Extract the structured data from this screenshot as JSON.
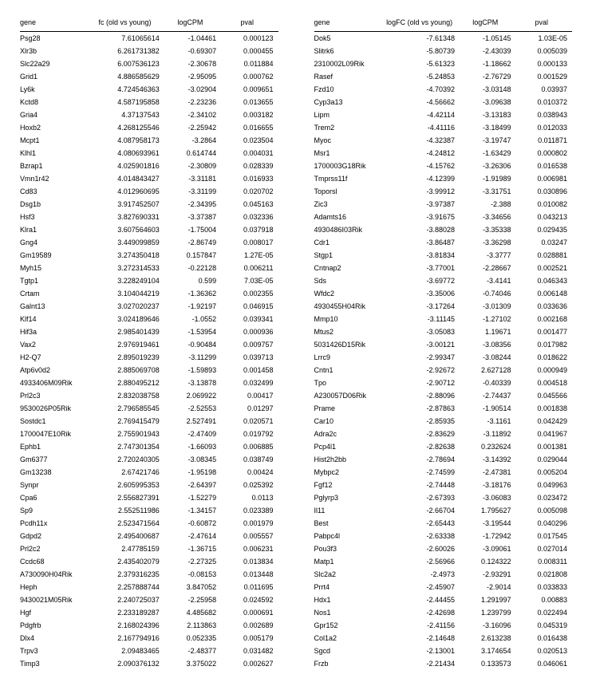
{
  "left_table": {
    "columns": [
      "gene",
      "fc (old vs young)",
      "logCPM",
      "pval"
    ],
    "rows": [
      [
        "Psg28",
        "7.61065614",
        "-1.04461",
        "0.000123"
      ],
      [
        "Xlr3b",
        "6.261731382",
        "-0.69307",
        "0.000455"
      ],
      [
        "Slc22a29",
        "6.007536123",
        "-2.30678",
        "0.011884"
      ],
      [
        "Grid1",
        "4.886585629",
        "-2.95095",
        "0.000762"
      ],
      [
        "Ly6k",
        "4.724546363",
        "-3.02904",
        "0.009651"
      ],
      [
        "Kctd8",
        "4.587195858",
        "-2.23236",
        "0.013655"
      ],
      [
        "Gria4",
        "4.37137543",
        "-2.34102",
        "0.003182"
      ],
      [
        "Hoxb2",
        "4.268125546",
        "-2.25942",
        "0.016655"
      ],
      [
        "Mcpt1",
        "4.087958173",
        "-3.2864",
        "0.023504"
      ],
      [
        "Klhl1",
        "4.080693961",
        "0.614744",
        "0.004031"
      ],
      [
        "Bzrap1",
        "4.025901816",
        "-2.30809",
        "0.028339"
      ],
      [
        "Vmn1r42",
        "4.014843427",
        "-3.31181",
        "0.016933"
      ],
      [
        "Cd83",
        "4.012960695",
        "-3.31199",
        "0.020702"
      ],
      [
        "Dsg1b",
        "3.917452507",
        "-2.34395",
        "0.045163"
      ],
      [
        "Hsf3",
        "3.827690331",
        "-3.37387",
        "0.032336"
      ],
      [
        "Klra1",
        "3.607564603",
        "-1.75004",
        "0.037918"
      ],
      [
        "Gng4",
        "3.449099859",
        "-2.86749",
        "0.008017"
      ],
      [
        "Gm19589",
        "3.274350418",
        "0.157847",
        "1.27E-05"
      ],
      [
        "Myh15",
        "3.272314533",
        "-0.22128",
        "0.006211"
      ],
      [
        "Tgtp1",
        "3.228249104",
        "0.599",
        "7.03E-05"
      ],
      [
        "Crtam",
        "3.104044219",
        "-1.36362",
        "0.002355"
      ],
      [
        "Galnt13",
        "3.027020237",
        "-1.92197",
        "0.046915"
      ],
      [
        "Klf14",
        "3.024189646",
        "-1.0552",
        "0.039341"
      ],
      [
        "Hif3a",
        "2.985401439",
        "-1.53954",
        "0.000936"
      ],
      [
        "Vax2",
        "2.976919461",
        "-0.90484",
        "0.009757"
      ],
      [
        "H2-Q7",
        "2.895019239",
        "-3.11299",
        "0.039713"
      ],
      [
        "Atp6v0d2",
        "2.885069708",
        "-1.59893",
        "0.001458"
      ],
      [
        "4933406M09Rik",
        "2.880495212",
        "-3.13878",
        "0.032499"
      ],
      [
        "Prl2c3",
        "2.832038758",
        "2.069922",
        "0.00417"
      ],
      [
        "9530026P05Rik",
        "2.796585545",
        "-2.52553",
        "0.01297"
      ],
      [
        "Sostdc1",
        "2.769415479",
        "2.527491",
        "0.020571"
      ],
      [
        "1700047E10Rik",
        "2.755901943",
        "-2.47409",
        "0.019792"
      ],
      [
        "Ephb1",
        "2.747301354",
        "-1.66093",
        "0.006885"
      ],
      [
        "Gm6377",
        "2.720240305",
        "-3.08345",
        "0.038749"
      ],
      [
        "Gm13238",
        "2.67421746",
        "-1.95198",
        "0.00424"
      ],
      [
        "Synpr",
        "2.605995353",
        "-2.64397",
        "0.025392"
      ],
      [
        "Cpa6",
        "2.556827391",
        "-1.52279",
        "0.0113"
      ],
      [
        "Sp9",
        "2.552511986",
        "-1.34157",
        "0.023389"
      ],
      [
        "Pcdh11x",
        "2.523471564",
        "-0.60872",
        "0.001979"
      ],
      [
        "Gdpd2",
        "2.495400687",
        "-2.47614",
        "0.005557"
      ],
      [
        "Prl2c2",
        "2.47785159",
        "-1.36715",
        "0.006231"
      ],
      [
        "Ccdc68",
        "2.435402079",
        "-2.27325",
        "0.013834"
      ],
      [
        "A730090H04Rik",
        "2.379316235",
        "-0.08153",
        "0.013448"
      ],
      [
        "Heph",
        "2.257888744",
        "3.847052",
        "0.011695"
      ],
      [
        "9430021M05Rik",
        "2.240725037",
        "-2.25958",
        "0.024592"
      ],
      [
        "Hgf",
        "2.233189287",
        "4.485682",
        "0.000691"
      ],
      [
        "Pdgfrb",
        "2.168024396",
        "2.113863",
        "0.002689"
      ],
      [
        "Dlx4",
        "2.167794916",
        "0.052335",
        "0.005179"
      ],
      [
        "Trpv3",
        "2.09483465",
        "-2.48377",
        "0.031482"
      ],
      [
        "Timp3",
        "2.090376132",
        "3.375022",
        "0.002627"
      ]
    ]
  },
  "right_table": {
    "columns": [
      "gene",
      "logFC (old vs young)",
      "logCPM",
      "pval"
    ],
    "rows": [
      [
        "Dok5",
        "-7.61348",
        "-1.05145",
        "1.03E-05"
      ],
      [
        "Slitrk6",
        "-5.80739",
        "-2.43039",
        "0.005039"
      ],
      [
        "2310002L09Rik",
        "-5.61323",
        "-1.18662",
        "0.000133"
      ],
      [
        "Rasef",
        "-5.24853",
        "-2.76729",
        "0.001529"
      ],
      [
        "Fzd10",
        "-4.70392",
        "-3.03148",
        "0.03937"
      ],
      [
        "Cyp3a13",
        "-4.56662",
        "-3.09638",
        "0.010372"
      ],
      [
        "Lipm",
        "-4.42114",
        "-3.13183",
        "0.038943"
      ],
      [
        "Trem2",
        "-4.41116",
        "-3.18499",
        "0.012033"
      ],
      [
        "Myoc",
        "-4.32387",
        "-3.19747",
        "0.011871"
      ],
      [
        "Msr1",
        "-4.24812",
        "-1.63429",
        "0.000802"
      ],
      [
        "1700003G18Rik",
        "-4.15762",
        "-3.26306",
        "0.016538"
      ],
      [
        "Tmprss11f",
        "-4.12399",
        "-1.91989",
        "0.006981"
      ],
      [
        "Toporsl",
        "-3.99912",
        "-3.31751",
        "0.030896"
      ],
      [
        "Zic3",
        "-3.97387",
        "-2.388",
        "0.010082"
      ],
      [
        "Adamts16",
        "-3.91675",
        "-3.34656",
        "0.043213"
      ],
      [
        "4930486I03Rik",
        "-3.88028",
        "-3.35338",
        "0.029435"
      ],
      [
        "Cdr1",
        "-3.86487",
        "-3.36298",
        "0.03247"
      ],
      [
        "Stgp1",
        "-3.81834",
        "-3.3777",
        "0.028881"
      ],
      [
        "Cntnap2",
        "-3.77001",
        "-2.28667",
        "0.002521"
      ],
      [
        "Sds",
        "-3.69772",
        "-3.4141",
        "0.046343"
      ],
      [
        "Wfdc2",
        "-3.35006",
        "-0.74046",
        "0.006148"
      ],
      [
        "4930455H04Rik",
        "-3.17264",
        "-3.01309",
        "0.033636"
      ],
      [
        "Mmp10",
        "-3.11145",
        "-1.27102",
        "0.002168"
      ],
      [
        "Mtus2",
        "-3.05083",
        "1.19671",
        "0.001477"
      ],
      [
        "5031426D15Rik",
        "-3.00121",
        "-3.08356",
        "0.017982"
      ],
      [
        "Lrrc9",
        "-2.99347",
        "-3.08244",
        "0.018622"
      ],
      [
        "Cntn1",
        "-2.92672",
        "2.627128",
        "0.000949"
      ],
      [
        "Tpo",
        "-2.90712",
        "-0.40339",
        "0.004518"
      ],
      [
        "A230057D06Rik",
        "-2.88096",
        "-2.74437",
        "0.045566"
      ],
      [
        "Prame",
        "-2.87863",
        "-1.90514",
        "0.001838"
      ],
      [
        "Car10",
        "-2.85935",
        "-3.1161",
        "0.042429"
      ],
      [
        "Adra2c",
        "-2.83629",
        "-3.11892",
        "0.041967"
      ],
      [
        "Pcp4l1",
        "-2.82638",
        "0.232624",
        "0.001381"
      ],
      [
        "Hist2h2bb",
        "-2.78694",
        "-3.14392",
        "0.029044"
      ],
      [
        "Mybpc2",
        "-2.74599",
        "-2.47381",
        "0.005204"
      ],
      [
        "Fgf12",
        "-2.74448",
        "-3.18176",
        "0.049963"
      ],
      [
        "Pglyrp3",
        "-2.67393",
        "-3.06083",
        "0.023472"
      ],
      [
        "Il11",
        "-2.66704",
        "1.795627",
        "0.005098"
      ],
      [
        "Best",
        "-2.65443",
        "-3.19544",
        "0.040296"
      ],
      [
        "Pabpc4l",
        "-2.63338",
        "-1.72942",
        "0.017545"
      ],
      [
        "Pou3f3",
        "-2.60026",
        "-3.09061",
        "0.027014"
      ],
      [
        "Matp1",
        "-2.56966",
        "0.124322",
        "0.008311"
      ],
      [
        "Slc2a2",
        "-2.4973",
        "-2.93291",
        "0.021808"
      ],
      [
        "Prrt4",
        "-2.45907",
        "-2.9014",
        "0.033833"
      ],
      [
        "Hdx1",
        "-2.44455",
        "1.291997",
        "0.00883"
      ],
      [
        "Nos1",
        "-2.42698",
        "1.239799",
        "0.022494"
      ],
      [
        "Gpr152",
        "-2.41156",
        "-3.16096",
        "0.045319"
      ],
      [
        "Col1a2",
        "-2.14648",
        "2.613238",
        "0.016438"
      ],
      [
        "Sgcd",
        "-2.13001",
        "3.174654",
        "0.020513"
      ],
      [
        "Frzb",
        "-2.21434",
        "0.133573",
        "0.046061"
      ]
    ]
  }
}
